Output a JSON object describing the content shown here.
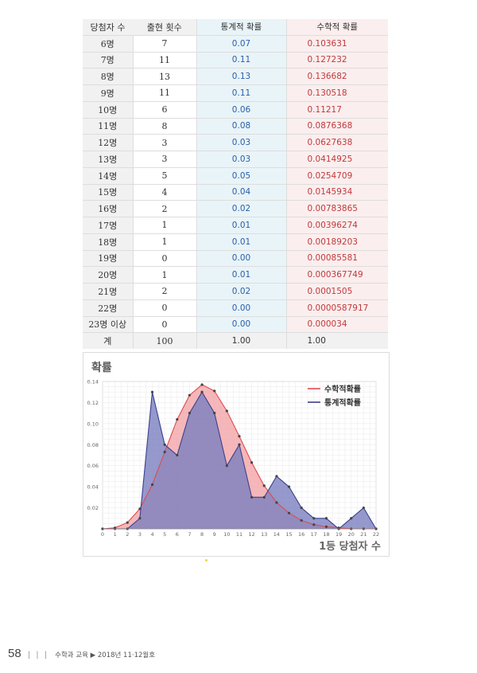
{
  "table": {
    "headers": [
      "당첨자 수",
      "출현 횟수",
      "통계적 확률",
      "수학적 확률"
    ],
    "rows": [
      [
        "6명",
        "7",
        "0.07",
        "0.103631"
      ],
      [
        "7명",
        "11",
        "0.11",
        "0.127232"
      ],
      [
        "8명",
        "13",
        "0.13",
        "0.136682"
      ],
      [
        "9명",
        "11",
        "0.11",
        "0.130518"
      ],
      [
        "10명",
        "6",
        "0.06",
        "0.11217"
      ],
      [
        "11명",
        "8",
        "0.08",
        "0.0876368"
      ],
      [
        "12명",
        "3",
        "0.03",
        "0.0627638"
      ],
      [
        "13명",
        "3",
        "0.03",
        "0.0414925"
      ],
      [
        "14명",
        "5",
        "0.05",
        "0.0254709"
      ],
      [
        "15명",
        "4",
        "0.04",
        "0.0145934"
      ],
      [
        "16명",
        "2",
        "0.02",
        "0.00783865"
      ],
      [
        "17명",
        "1",
        "0.01",
        "0.00396274"
      ],
      [
        "18명",
        "1",
        "0.01",
        "0.00189203"
      ],
      [
        "19명",
        "0",
        "0.00",
        "0.00085581"
      ],
      [
        "20명",
        "1",
        "0.01",
        "0.000367749"
      ],
      [
        "21명",
        "2",
        "0.02",
        "0.0001505"
      ],
      [
        "22명",
        "0",
        "0.00",
        "0.0000587917"
      ],
      [
        "23명 이상",
        "0",
        "0.00",
        "0.000034"
      ]
    ],
    "total": [
      "계",
      "100",
      "1.00",
      "1.00"
    ]
  },
  "chart_data": {
    "type": "area",
    "title": "확률",
    "xlabel": "1등 당첨자 수",
    "ylabel": "",
    "x": [
      0,
      1,
      2,
      3,
      4,
      5,
      6,
      7,
      8,
      9,
      10,
      11,
      12,
      13,
      14,
      15,
      16,
      17,
      18,
      19,
      20,
      21,
      22
    ],
    "xlim": [
      0,
      22
    ],
    "ylim": [
      0,
      0.14
    ],
    "yticks": [
      "0.02",
      "0.04",
      "0.06",
      "0.08",
      "0.10",
      "0.12",
      "0.14"
    ],
    "grid": true,
    "legend_position": "top-right",
    "series": [
      {
        "name": "수학적확률",
        "color": "#e04a4f",
        "fill": "#f2a5a8",
        "values": [
          0,
          0.001,
          0.006,
          0.019,
          0.042,
          0.073,
          0.104,
          0.127,
          0.137,
          0.131,
          0.112,
          0.088,
          0.063,
          0.041,
          0.025,
          0.015,
          0.008,
          0.004,
          0.002,
          0.001,
          0,
          0,
          0
        ]
      },
      {
        "name": "통계적확률",
        "color": "#3b3f8f",
        "fill": "#7b7fbf",
        "values": [
          0,
          0,
          0,
          0.01,
          0.13,
          0.08,
          0.07,
          0.11,
          0.13,
          0.11,
          0.06,
          0.08,
          0.03,
          0.03,
          0.05,
          0.04,
          0.02,
          0.01,
          0.01,
          0,
          0.01,
          0.02,
          0
        ]
      }
    ]
  },
  "footer": {
    "page_number": "58",
    "bars": "| | |",
    "text": "수학과 교육 ▶ 2018년 11·12월호"
  }
}
